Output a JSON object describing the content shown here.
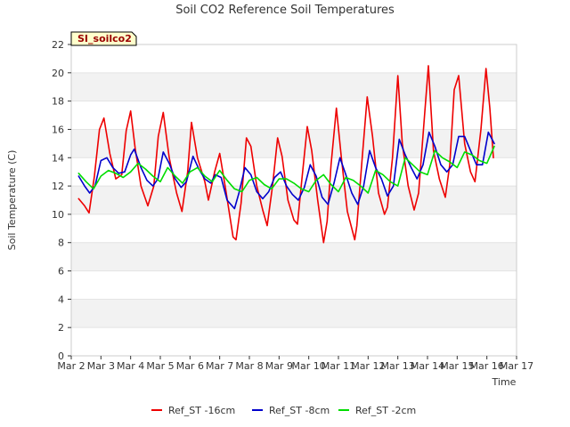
{
  "station_label": "SI_soilco2",
  "chart_data": {
    "type": "line",
    "title": "Soil CO2 Reference Soil Temperatures",
    "xlabel": "Time",
    "ylabel": "Soil Temperature (C)",
    "ylim": [
      0,
      22
    ],
    "y_ticks": [
      0,
      2,
      4,
      6,
      8,
      10,
      12,
      14,
      16,
      18,
      20,
      22
    ],
    "xlim": [
      2,
      17
    ],
    "x_ticks": [
      {
        "x": 2,
        "label": "Mar 2"
      },
      {
        "x": 3,
        "label": "Mar 3"
      },
      {
        "x": 4,
        "label": "Mar 4"
      },
      {
        "x": 5,
        "label": "Mar 5"
      },
      {
        "x": 6,
        "label": "Mar 6"
      },
      {
        "x": 7,
        "label": "Mar 7"
      },
      {
        "x": 8,
        "label": "Mar 8"
      },
      {
        "x": 9,
        "label": "Mar 9"
      },
      {
        "x": 10,
        "label": "Mar 10"
      },
      {
        "x": 11,
        "label": "Mar 11"
      },
      {
        "x": 12,
        "label": "Mar 12"
      },
      {
        "x": 13,
        "label": "Mar 13"
      },
      {
        "x": 14,
        "label": "Mar 14"
      },
      {
        "x": 15,
        "label": "Mar 15"
      },
      {
        "x": 16,
        "label": "Mar 16"
      },
      {
        "x": 17,
        "label": "Mar 17"
      }
    ],
    "grid": "horizontal-bands",
    "legend_position": "bottom",
    "series": [
      {
        "name": "Ref_ST -16cm",
        "color": "#ee0000",
        "x": [
          2.25,
          2.45,
          2.6,
          2.78,
          2.95,
          3.1,
          3.3,
          3.5,
          3.7,
          3.85,
          4.0,
          4.15,
          4.35,
          4.58,
          4.78,
          4.93,
          5.1,
          5.3,
          5.55,
          5.73,
          5.92,
          6.05,
          6.25,
          6.5,
          6.62,
          6.83,
          7.0,
          7.2,
          7.45,
          7.55,
          7.72,
          7.9,
          8.05,
          8.25,
          8.45,
          8.6,
          8.78,
          8.95,
          9.1,
          9.3,
          9.5,
          9.62,
          9.77,
          9.95,
          10.1,
          10.3,
          10.5,
          10.62,
          10.75,
          10.93,
          11.1,
          11.3,
          11.55,
          11.62,
          11.8,
          11.97,
          12.15,
          12.35,
          12.55,
          12.65,
          12.82,
          13.0,
          13.15,
          13.35,
          13.55,
          13.7,
          13.9,
          14.03,
          14.2,
          14.4,
          14.6,
          14.75,
          14.9,
          15.05,
          15.25,
          15.45,
          15.6,
          15.8,
          15.97,
          16.1,
          16.22
        ],
        "values": [
          11.1,
          10.6,
          10.1,
          12.7,
          16.0,
          16.8,
          14.3,
          12.5,
          12.8,
          15.9,
          17.3,
          14.7,
          12.0,
          10.6,
          12.0,
          15.5,
          17.2,
          14.0,
          11.5,
          10.2,
          13.0,
          16.5,
          14.0,
          12.3,
          11.0,
          13.0,
          14.3,
          11.8,
          8.4,
          8.2,
          10.8,
          15.4,
          14.8,
          12.0,
          10.3,
          9.2,
          12.0,
          15.4,
          14.1,
          11.0,
          9.6,
          9.3,
          12.5,
          16.2,
          14.5,
          11.0,
          8.0,
          9.5,
          13.5,
          17.5,
          14.0,
          10.2,
          8.2,
          9.2,
          14.0,
          18.3,
          15.5,
          11.5,
          10.0,
          10.5,
          14.0,
          19.8,
          15.0,
          12.0,
          10.3,
          11.5,
          17.0,
          20.5,
          14.5,
          12.5,
          11.2,
          13.5,
          18.8,
          19.8,
          15.0,
          13.0,
          12.3,
          16.0,
          20.3,
          17.5,
          14.0
        ]
      },
      {
        "name": "Ref_ST -8cm",
        "color": "#0000cc",
        "x": [
          2.25,
          2.45,
          2.62,
          2.8,
          3.0,
          3.2,
          3.4,
          3.6,
          3.8,
          4.0,
          4.12,
          4.35,
          4.55,
          4.75,
          4.92,
          5.1,
          5.3,
          5.5,
          5.7,
          5.88,
          6.1,
          6.3,
          6.5,
          6.7,
          6.85,
          7.05,
          7.25,
          7.5,
          7.65,
          7.85,
          8.05,
          8.25,
          8.45,
          8.65,
          8.85,
          9.05,
          9.25,
          9.45,
          9.65,
          9.85,
          10.05,
          10.25,
          10.45,
          10.65,
          10.85,
          11.05,
          11.25,
          11.45,
          11.65,
          11.85,
          12.05,
          12.25,
          12.45,
          12.65,
          12.85,
          13.05,
          13.25,
          13.45,
          13.65,
          13.85,
          14.05,
          14.25,
          14.45,
          14.65,
          14.85,
          15.05,
          15.25,
          15.45,
          15.65,
          15.85,
          16.05,
          16.25
        ],
        "values": [
          12.7,
          12.0,
          11.5,
          12.0,
          13.8,
          14.0,
          13.3,
          12.9,
          13.0,
          14.2,
          14.6,
          13.3,
          12.4,
          12.0,
          12.5,
          14.4,
          13.6,
          12.5,
          11.9,
          12.3,
          14.1,
          13.2,
          12.5,
          12.2,
          12.8,
          12.6,
          11.0,
          10.4,
          11.5,
          13.3,
          12.8,
          11.6,
          11.1,
          11.6,
          12.6,
          13.0,
          12.0,
          11.4,
          11.0,
          11.9,
          13.5,
          12.7,
          11.2,
          10.7,
          12.2,
          14.0,
          12.8,
          11.5,
          10.7,
          12.0,
          14.5,
          13.3,
          12.5,
          11.3,
          12.0,
          15.3,
          14.2,
          13.3,
          12.5,
          13.5,
          15.8,
          14.8,
          13.5,
          13.0,
          13.5,
          15.5,
          15.5,
          14.5,
          13.5,
          13.5,
          15.8,
          15.0
        ]
      },
      {
        "name": "Ref_ST -2cm",
        "color": "#00dd00",
        "x": [
          2.25,
          2.5,
          2.75,
          3.0,
          3.25,
          3.5,
          3.75,
          4.0,
          4.25,
          4.5,
          4.75,
          5.0,
          5.25,
          5.5,
          5.75,
          6.0,
          6.25,
          6.5,
          6.75,
          7.0,
          7.25,
          7.5,
          7.75,
          8.0,
          8.25,
          8.5,
          8.75,
          9.0,
          9.25,
          9.5,
          9.75,
          10.0,
          10.25,
          10.5,
          10.75,
          11.0,
          11.25,
          11.5,
          11.75,
          12.0,
          12.25,
          12.5,
          12.75,
          13.0,
          13.25,
          13.5,
          13.75,
          14.0,
          14.25,
          14.5,
          14.75,
          15.0,
          15.25,
          15.5,
          15.75,
          16.0,
          16.25
        ],
        "values": [
          12.9,
          12.3,
          11.8,
          12.7,
          13.1,
          12.9,
          12.6,
          13.0,
          13.6,
          13.2,
          12.7,
          12.3,
          13.3,
          12.7,
          12.2,
          13.0,
          13.3,
          12.7,
          12.3,
          13.1,
          12.4,
          11.8,
          11.6,
          12.4,
          12.6,
          12.1,
          11.8,
          12.5,
          12.5,
          12.2,
          11.8,
          11.6,
          12.4,
          12.8,
          12.1,
          11.6,
          12.6,
          12.4,
          12.0,
          11.5,
          13.1,
          12.8,
          12.3,
          12.0,
          14.0,
          13.5,
          13.0,
          12.8,
          14.5,
          14.0,
          13.7,
          13.3,
          14.4,
          14.2,
          13.8,
          13.6,
          14.8
        ]
      }
    ]
  }
}
